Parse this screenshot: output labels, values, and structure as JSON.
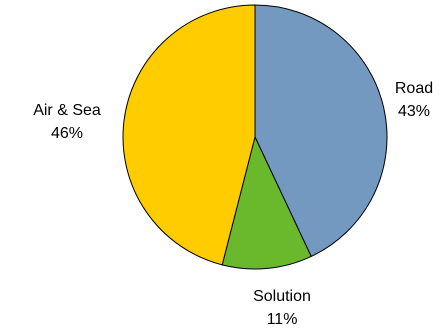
{
  "chart_data": {
    "type": "pie",
    "title": "",
    "legend": "none",
    "slices": [
      {
        "label": "Road",
        "value": 43,
        "value_label": "43%",
        "color": "#7399C0"
      },
      {
        "label": "Solution",
        "value": 11,
        "value_label": "11%",
        "color": "#6AB92D"
      },
      {
        "label": "Air & Sea",
        "value": 46,
        "value_label": "46%",
        "color": "#FFCC00"
      }
    ]
  }
}
